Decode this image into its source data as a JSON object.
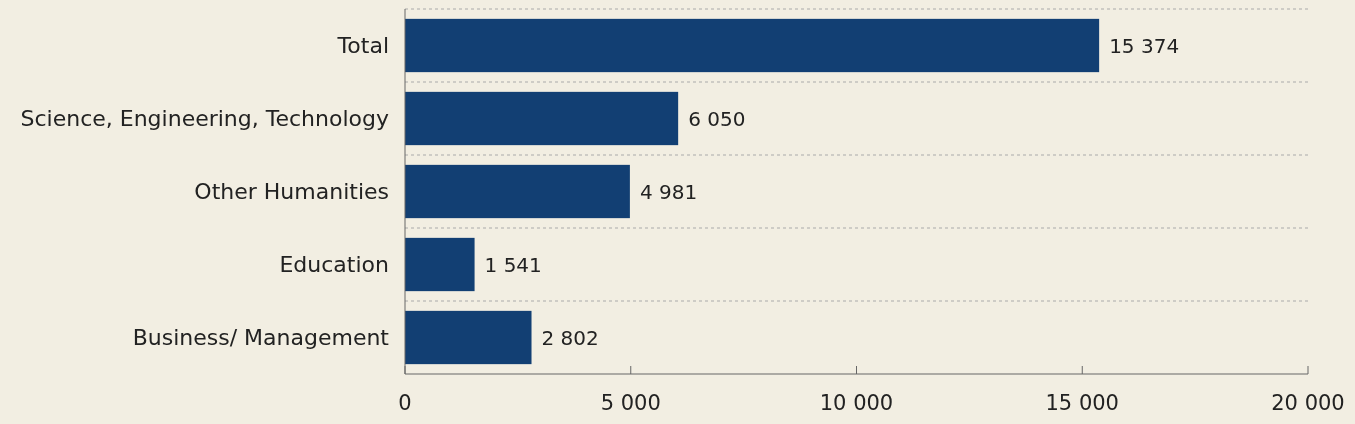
{
  "chart_data": {
    "type": "bar",
    "orientation": "horizontal",
    "categories": [
      "Total",
      "Science, Engineering, Technology",
      "Other Humanities",
      "Education",
      "Business/ Management"
    ],
    "values": [
      15374,
      6050,
      4981,
      1541,
      2802
    ],
    "value_labels": [
      "15 374",
      "6 050",
      "4 981",
      "1 541",
      "2 802"
    ],
    "color": "#123f73",
    "xlim": [
      0,
      20000
    ],
    "xticks": [
      0,
      {
        "value": 5000,
        "label": "5 000"
      },
      {
        "value": 10000,
        "label": "10 000"
      },
      {
        "value": 15000,
        "label": "15 000"
      },
      {
        "value": 20000,
        "label": "20 000"
      }
    ],
    "grid": "y"
  }
}
